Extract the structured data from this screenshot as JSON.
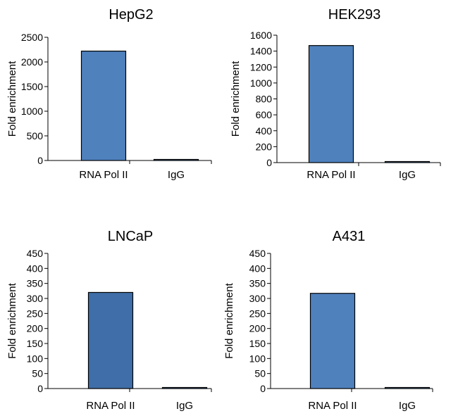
{
  "colors": {
    "bar_fill": "#4f81bd",
    "bar_fill_dark": "#3f6ea8",
    "bar_stroke": "#000000",
    "axis": "#000000",
    "background": "#ffffff"
  },
  "chart_data": [
    {
      "type": "bar",
      "title": "HepG2",
      "ylabel": "Fold enrichment",
      "xlabel": "",
      "categories": [
        "RNA Pol II",
        "IgG"
      ],
      "values": [
        2220,
        15
      ],
      "ylim": [
        0,
        2500
      ],
      "yticks": [
        0,
        500,
        1000,
        1500,
        2000,
        2500
      ],
      "grid": false
    },
    {
      "type": "bar",
      "title": "HEK293",
      "ylabel": "Fold enrichment",
      "xlabel": "",
      "categories": [
        "RNA Pol II",
        "IgG"
      ],
      "values": [
        1470,
        12
      ],
      "ylim": [
        0,
        1600
      ],
      "yticks": [
        0,
        200,
        400,
        600,
        800,
        1000,
        1200,
        1400,
        1600
      ],
      "grid": false
    },
    {
      "type": "bar",
      "title": "LNCaP",
      "ylabel": "Fold enrichment",
      "xlabel": "",
      "categories": [
        "RNA Pol II",
        "IgG"
      ],
      "values": [
        320,
        2
      ],
      "ylim": [
        0,
        450
      ],
      "yticks": [
        0,
        50,
        100,
        150,
        200,
        250,
        300,
        350,
        400,
        450
      ],
      "grid": false
    },
    {
      "type": "bar",
      "title": "A431",
      "ylabel": "Fold enrichment",
      "xlabel": "",
      "categories": [
        "RNA Pol II",
        "IgG"
      ],
      "values": [
        317,
        2
      ],
      "ylim": [
        0,
        450
      ],
      "yticks": [
        0,
        50,
        100,
        150,
        200,
        250,
        300,
        350,
        400,
        450
      ],
      "grid": false
    }
  ]
}
